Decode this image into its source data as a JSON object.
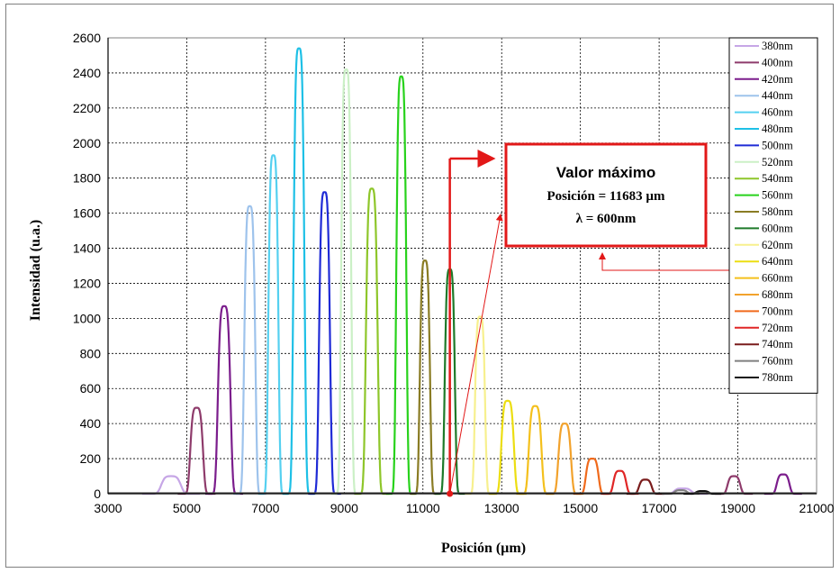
{
  "chart_data": {
    "type": "line",
    "xlabel": "Posición (µm)",
    "ylabel": "Intensidad (u.a.)",
    "xlim": [
      3000,
      21000
    ],
    "ylim": [
      0,
      2600
    ],
    "xticks": [
      3000,
      5000,
      7000,
      9000,
      11000,
      13000,
      15000,
      17000,
      19000,
      21000
    ],
    "yticks": [
      0,
      200,
      400,
      600,
      800,
      1000,
      1200,
      1400,
      1600,
      1800,
      2000,
      2200,
      2400,
      2600
    ],
    "grid": true,
    "legend_position": "right",
    "series": [
      {
        "name": "380nm",
        "color": "#c6a6e6",
        "peaks": [
          [
            4600,
            100,
            230
          ],
          [
            17600,
            30,
            200
          ]
        ]
      },
      {
        "name": "400nm",
        "color": "#8e3b6b",
        "peaks": [
          [
            5250,
            490,
            150
          ],
          [
            18900,
            100,
            150
          ]
        ]
      },
      {
        "name": "420nm",
        "color": "#7b1d8c",
        "peaks": [
          [
            5950,
            1070,
            150
          ],
          [
            20150,
            110,
            150
          ]
        ]
      },
      {
        "name": "440nm",
        "color": "#9ec3ec",
        "peaks": [
          [
            6600,
            1640,
            130
          ]
        ]
      },
      {
        "name": "460nm",
        "color": "#55d0f0",
        "peaks": [
          [
            7200,
            1930,
            120
          ]
        ]
      },
      {
        "name": "480nm",
        "color": "#1ec0e6",
        "peaks": [
          [
            7850,
            2540,
            130
          ]
        ]
      },
      {
        "name": "500nm",
        "color": "#1f2bd6",
        "peaks": [
          [
            8500,
            1720,
            130
          ]
        ]
      },
      {
        "name": "520nm",
        "color": "#cbf0c6",
        "peaks": [
          [
            9050,
            2420,
            120
          ]
        ]
      },
      {
        "name": "540nm",
        "color": "#8ec62a",
        "peaks": [
          [
            9700,
            1740,
            140
          ]
        ]
      },
      {
        "name": "560nm",
        "color": "#28d21c",
        "peaks": [
          [
            10450,
            2380,
            120
          ]
        ]
      },
      {
        "name": "580nm",
        "color": "#8a7c24",
        "peaks": [
          [
            11050,
            1330,
            120
          ]
        ]
      },
      {
        "name": "600nm",
        "color": "#1e7a2a",
        "peaks": [
          [
            11683,
            1280,
            120
          ]
        ]
      },
      {
        "name": "620nm",
        "color": "#f7f08e",
        "peaks": [
          [
            12450,
            1010,
            120
          ]
        ]
      },
      {
        "name": "640nm",
        "color": "#ecde12",
        "peaks": [
          [
            13150,
            530,
            150
          ]
        ]
      },
      {
        "name": "660nm",
        "color": "#f4c01c",
        "peaks": [
          [
            13850,
            500,
            150
          ]
        ]
      },
      {
        "name": "680nm",
        "color": "#f2a22c",
        "peaks": [
          [
            14600,
            400,
            150
          ]
        ]
      },
      {
        "name": "700nm",
        "color": "#f06a1c",
        "peaks": [
          [
            15300,
            200,
            150
          ]
        ]
      },
      {
        "name": "720nm",
        "color": "#e02626",
        "peaks": [
          [
            16000,
            130,
            150
          ]
        ]
      },
      {
        "name": "740nm",
        "color": "#7a1c1c",
        "peaks": [
          [
            16650,
            80,
            150
          ]
        ]
      },
      {
        "name": "760nm",
        "color": "#7f7f7f",
        "peaks": [
          [
            17550,
            20,
            150
          ]
        ]
      },
      {
        "name": "780nm",
        "color": "#111111",
        "peaks": [
          [
            18100,
            15,
            150
          ]
        ]
      }
    ],
    "annotation": {
      "title": "Valor máximo",
      "line1": "Posición = 11683 µm",
      "line2": "λ = 600nm",
      "marker_x": 11683,
      "border_color": "#e21818"
    }
  }
}
